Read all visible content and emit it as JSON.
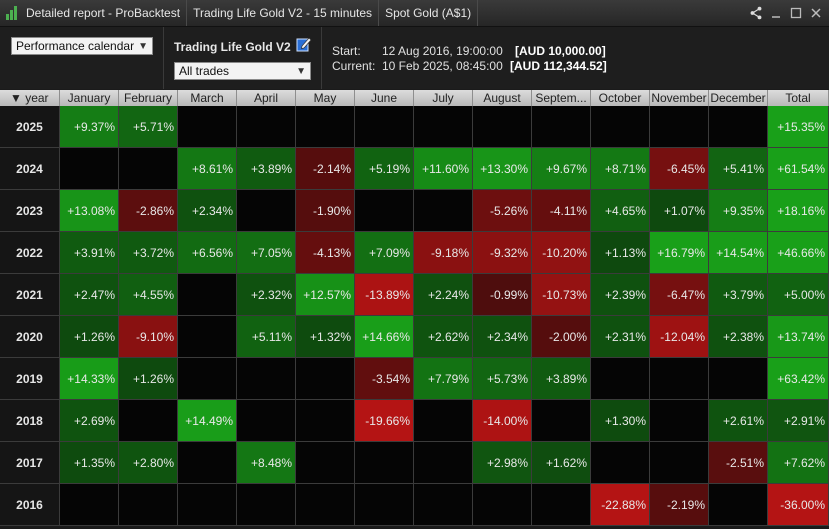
{
  "titlebar": {
    "app_title": "Detailed report - ProBacktest",
    "strategy_tab": "Trading Life Gold V2 - 15 minutes",
    "instrument_tab": "Spot Gold (A$1)"
  },
  "header": {
    "view_select": "Performance calendar",
    "strategy_name": "Trading Life Gold V2",
    "trades_select": "All trades",
    "start_label": "Start:",
    "start_date": "12 Aug 2016, 19:00:00",
    "start_value": "[AUD 10,000.00]",
    "current_label": "Current:",
    "current_date": "10 Feb 2025, 08:45:00",
    "current_value": "[AUD 112,344.52]"
  },
  "table": {
    "columns": [
      "▼ year",
      "January",
      "February",
      "March",
      "April",
      "May",
      "June",
      "July",
      "August",
      "Septem...",
      "October",
      "November",
      "December",
      "Total"
    ],
    "rows": [
      {
        "year": "2025",
        "values": [
          9.37,
          5.71,
          null,
          null,
          null,
          null,
          null,
          null,
          null,
          null,
          null,
          null
        ],
        "total": 15.35
      },
      {
        "year": "2024",
        "values": [
          null,
          null,
          8.61,
          3.89,
          -2.14,
          5.19,
          11.6,
          13.3,
          9.67,
          8.71,
          -6.45,
          5.41
        ],
        "total": 61.54
      },
      {
        "year": "2023",
        "values": [
          13.08,
          -2.86,
          2.34,
          null,
          -1.9,
          null,
          null,
          -5.26,
          -4.11,
          4.65,
          1.07,
          9.35
        ],
        "total": 18.16
      },
      {
        "year": "2022",
        "values": [
          3.91,
          3.72,
          6.56,
          7.05,
          -4.13,
          7.09,
          -9.18,
          -9.32,
          -10.2,
          1.13,
          16.79,
          14.54
        ],
        "total": 46.66
      },
      {
        "year": "2021",
        "values": [
          2.47,
          4.55,
          null,
          2.32,
          12.57,
          -13.89,
          2.24,
          -0.99,
          -10.73,
          2.39,
          -6.47,
          3.79
        ],
        "total": 5.0
      },
      {
        "year": "2020",
        "values": [
          1.26,
          -9.1,
          null,
          5.11,
          1.32,
          14.66,
          2.62,
          2.34,
          -2.0,
          2.31,
          -12.04,
          2.38
        ],
        "total": 13.74
      },
      {
        "year": "2019",
        "values": [
          14.33,
          1.26,
          null,
          null,
          null,
          -3.54,
          7.79,
          5.73,
          3.89,
          null,
          null,
          null
        ],
        "total": 63.42
      },
      {
        "year": "2018",
        "values": [
          2.69,
          null,
          14.49,
          null,
          null,
          -19.66,
          null,
          -14.0,
          null,
          1.3,
          null,
          2.61
        ],
        "total": 2.91
      },
      {
        "year": "2017",
        "values": [
          1.35,
          2.8,
          null,
          8.48,
          null,
          null,
          null,
          2.98,
          1.62,
          null,
          null,
          -2.51
        ],
        "total": 7.62
      },
      {
        "year": "2016",
        "values": [
          null,
          null,
          null,
          null,
          null,
          null,
          null,
          null,
          null,
          -22.88,
          -2.19,
          null
        ],
        "total": -36.0
      }
    ]
  },
  "colors": {
    "positive": "#1a9a1a",
    "negative": "#b01515",
    "empty": "#050505"
  }
}
